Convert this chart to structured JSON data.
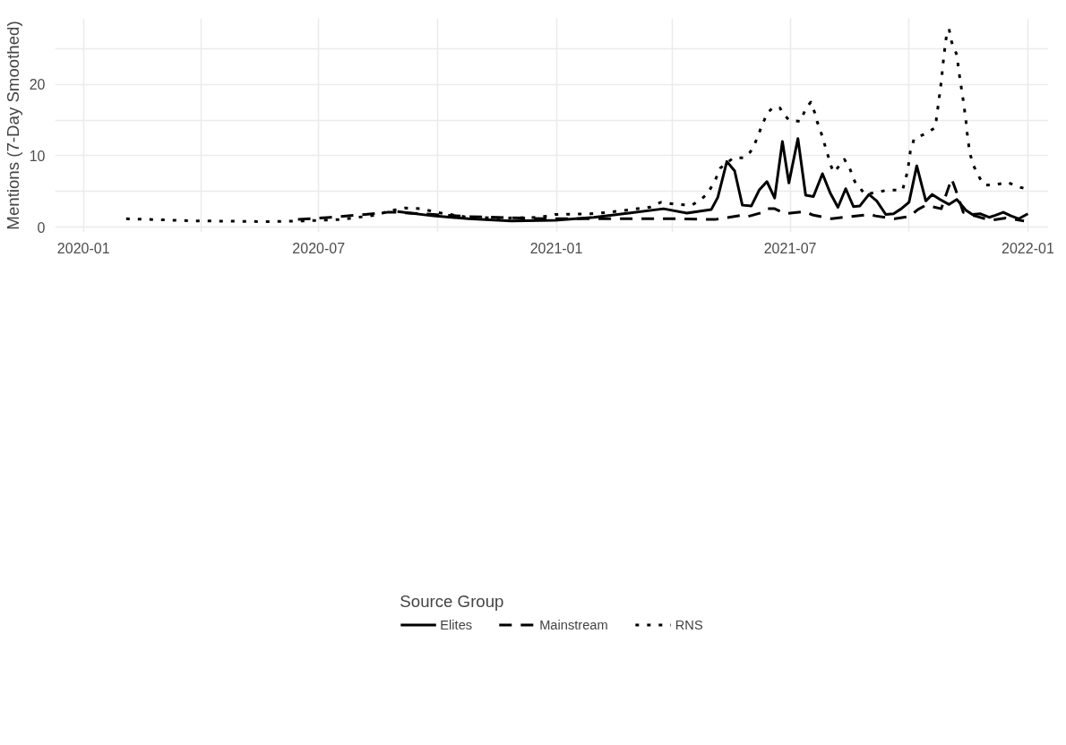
{
  "chart_data": {
    "type": "line",
    "ylabel": "Mentions (7-Day Smoothed)",
    "legend_title": "Source Group",
    "legend": "bottom",
    "grid": true,
    "marker": "none",
    "xlim": [
      "2019-12-10",
      "2022-01-17"
    ],
    "ylim": [
      -0.7,
      29.2
    ],
    "xticks": [
      {
        "value": "2020-01",
        "label": "2020-01"
      },
      {
        "value": "2020-04",
        "label": null
      },
      {
        "value": "2020-07",
        "label": "2020-07"
      },
      {
        "value": "2020-10",
        "label": null
      },
      {
        "value": "2021-01",
        "label": "2021-01"
      },
      {
        "value": "2021-04",
        "label": null
      },
      {
        "value": "2021-07",
        "label": "2021-07"
      },
      {
        "value": "2021-10",
        "label": null
      },
      {
        "value": "2022-01",
        "label": "2022-01"
      }
    ],
    "yticks": [
      0,
      {
        "value": 5,
        "label": null
      },
      10,
      {
        "value": 15,
        "label": null
      },
      20,
      {
        "value": 25,
        "label": null
      }
    ],
    "series": [
      {
        "name": "Elites",
        "color": "#000000",
        "line_style": "solid",
        "x": [
          "2020-08-31",
          "2020-09-28",
          "2020-10-25",
          "2020-11-27",
          "2020-12-31",
          "2021-01-30",
          "2021-02-26",
          "2021-03-25",
          "2021-04-12",
          "2021-05-01",
          "2021-05-06",
          "2021-05-13",
          "2021-05-19",
          "2021-05-25",
          "2021-06-01",
          "2021-06-07",
          "2021-06-13",
          "2021-06-19",
          "2021-06-25",
          "2021-06-30",
          "2021-07-07",
          "2021-07-13",
          "2021-07-19",
          "2021-07-26",
          "2021-08-01",
          "2021-08-07",
          "2021-08-13",
          "2021-08-19",
          "2021-08-24",
          "2021-08-31",
          "2021-09-06",
          "2021-09-13",
          "2021-09-19",
          "2021-09-25",
          "2021-10-01",
          "2021-10-07",
          "2021-10-14",
          "2021-10-19",
          "2021-10-25",
          "2021-11-01",
          "2021-11-07",
          "2021-11-14",
          "2021-11-19",
          "2021-11-25",
          "2021-12-02",
          "2021-12-07",
          "2021-12-13",
          "2021-12-19",
          "2021-12-25",
          "2022-01-01"
        ],
        "values": [
          2.2,
          1.6,
          1.2,
          0.9,
          1.0,
          1.4,
          2.0,
          2.6,
          2.0,
          2.5,
          4.2,
          9.2,
          7.9,
          3.1,
          3.0,
          5.2,
          6.4,
          4.1,
          12.0,
          6.2,
          12.4,
          4.5,
          4.3,
          7.5,
          4.8,
          2.8,
          5.4,
          2.9,
          3.0,
          4.6,
          3.7,
          1.8,
          1.9,
          2.6,
          3.5,
          8.6,
          3.7,
          4.6,
          3.9,
          3.2,
          3.9,
          2.4,
          1.8,
          1.9,
          1.4,
          1.7,
          2.1,
          1.6,
          1.2,
          1.9
        ]
      },
      {
        "name": "Mainstream",
        "color": "#000000",
        "line_style": "dashed",
        "x": [
          "2020-06-15",
          "2020-07-10",
          "2020-08-06",
          "2020-08-23",
          "2020-08-31",
          "2020-09-28",
          "2020-10-25",
          "2020-12-06",
          "2020-12-25",
          "2021-01-30",
          "2021-03-01",
          "2021-04-02",
          "2021-05-04",
          "2021-05-25",
          "2021-05-29",
          "2021-06-10",
          "2021-06-13",
          "2021-06-19",
          "2021-06-27",
          "2021-07-12",
          "2021-07-19",
          "2021-08-02",
          "2021-08-11",
          "2021-09-01",
          "2021-09-05",
          "2021-09-20",
          "2021-10-01",
          "2021-10-08",
          "2021-10-14",
          "2021-10-26",
          "2021-10-29",
          "2021-11-03",
          "2021-11-07",
          "2021-11-12",
          "2021-11-21",
          "2021-12-03",
          "2021-12-15",
          "2021-12-29"
        ],
        "values": [
          1.1,
          1.4,
          1.8,
          2.1,
          2.1,
          1.8,
          1.5,
          1.3,
          1.2,
          1.2,
          1.2,
          1.2,
          1.1,
          1.7,
          1.5,
          2.1,
          2.6,
          2.6,
          1.9,
          2.2,
          1.7,
          1.2,
          1.4,
          1.8,
          1.6,
          1.2,
          1.5,
          2.5,
          3.1,
          2.6,
          4.2,
          6.8,
          4.8,
          2.1,
          1.6,
          1.0,
          1.3,
          0.9
        ]
      },
      {
        "name": "RNS",
        "color": "#000000",
        "line_style": "dotted",
        "x": [
          "2020-02-03",
          "2020-03-29",
          "2020-05-24",
          "2020-06-20",
          "2020-07-18",
          "2020-08-14",
          "2020-08-25",
          "2020-09-06",
          "2020-09-19",
          "2020-09-30",
          "2020-10-25",
          "2020-11-21",
          "2020-12-19",
          "2020-12-31",
          "2021-01-27",
          "2021-02-10",
          "2021-03-14",
          "2021-03-23",
          "2021-04-04",
          "2021-04-16",
          "2021-04-23",
          "2021-04-28",
          "2021-05-04",
          "2021-05-08",
          "2021-05-18",
          "2021-05-26",
          "2021-05-31",
          "2021-06-03",
          "2021-06-07",
          "2021-06-09",
          "2021-06-11",
          "2021-06-13",
          "2021-06-18",
          "2021-06-23",
          "2021-06-26",
          "2021-06-30",
          "2021-07-09",
          "2021-07-11",
          "2021-07-13",
          "2021-07-17",
          "2021-07-19",
          "2021-07-21",
          "2021-07-22",
          "2021-07-24",
          "2021-07-27",
          "2021-07-30",
          "2021-08-02",
          "2021-08-04",
          "2021-08-12",
          "2021-08-16",
          "2021-08-20",
          "2021-08-24",
          "2021-08-28",
          "2021-09-03",
          "2021-09-14",
          "2021-09-26",
          "2021-09-30",
          "2021-10-02",
          "2021-10-05",
          "2021-10-14",
          "2021-10-21",
          "2021-10-22",
          "2021-10-24",
          "2021-10-26",
          "2021-10-28",
          "2021-10-30",
          "2021-11-01",
          "2021-11-03",
          "2021-11-07",
          "2021-11-09",
          "2021-11-12",
          "2021-11-14",
          "2021-11-15",
          "2021-11-17",
          "2021-11-20",
          "2021-11-25",
          "2021-11-29",
          "2021-12-08",
          "2021-12-16",
          "2021-12-26",
          "2021-12-30"
        ],
        "values": [
          1.2,
          0.9,
          0.8,
          0.9,
          1.1,
          1.7,
          2.3,
          2.7,
          2.6,
          2.1,
          1.4,
          1.3,
          1.4,
          1.8,
          1.9,
          2.1,
          2.8,
          3.5,
          3.2,
          3.1,
          3.9,
          4.7,
          6.6,
          8.3,
          9.7,
          9.7,
          10.5,
          11.4,
          13.2,
          14.2,
          15.0,
          15.9,
          16.8,
          16.7,
          15.8,
          15.0,
          14.8,
          15.7,
          16.6,
          17.5,
          16.5,
          15.6,
          14.7,
          13.8,
          12.0,
          10.2,
          8.4,
          7.7,
          9.5,
          8.3,
          6.4,
          5.5,
          4.6,
          4.8,
          5.2,
          5.2,
          7.9,
          10.6,
          12.4,
          13.1,
          13.9,
          14.9,
          17.6,
          20.4,
          24.0,
          26.8,
          27.7,
          25.9,
          24.1,
          21.3,
          17.7,
          15.0,
          13.2,
          10.4,
          8.6,
          6.8,
          5.9,
          6.0,
          6.3,
          5.6,
          5.4
        ]
      }
    ]
  }
}
